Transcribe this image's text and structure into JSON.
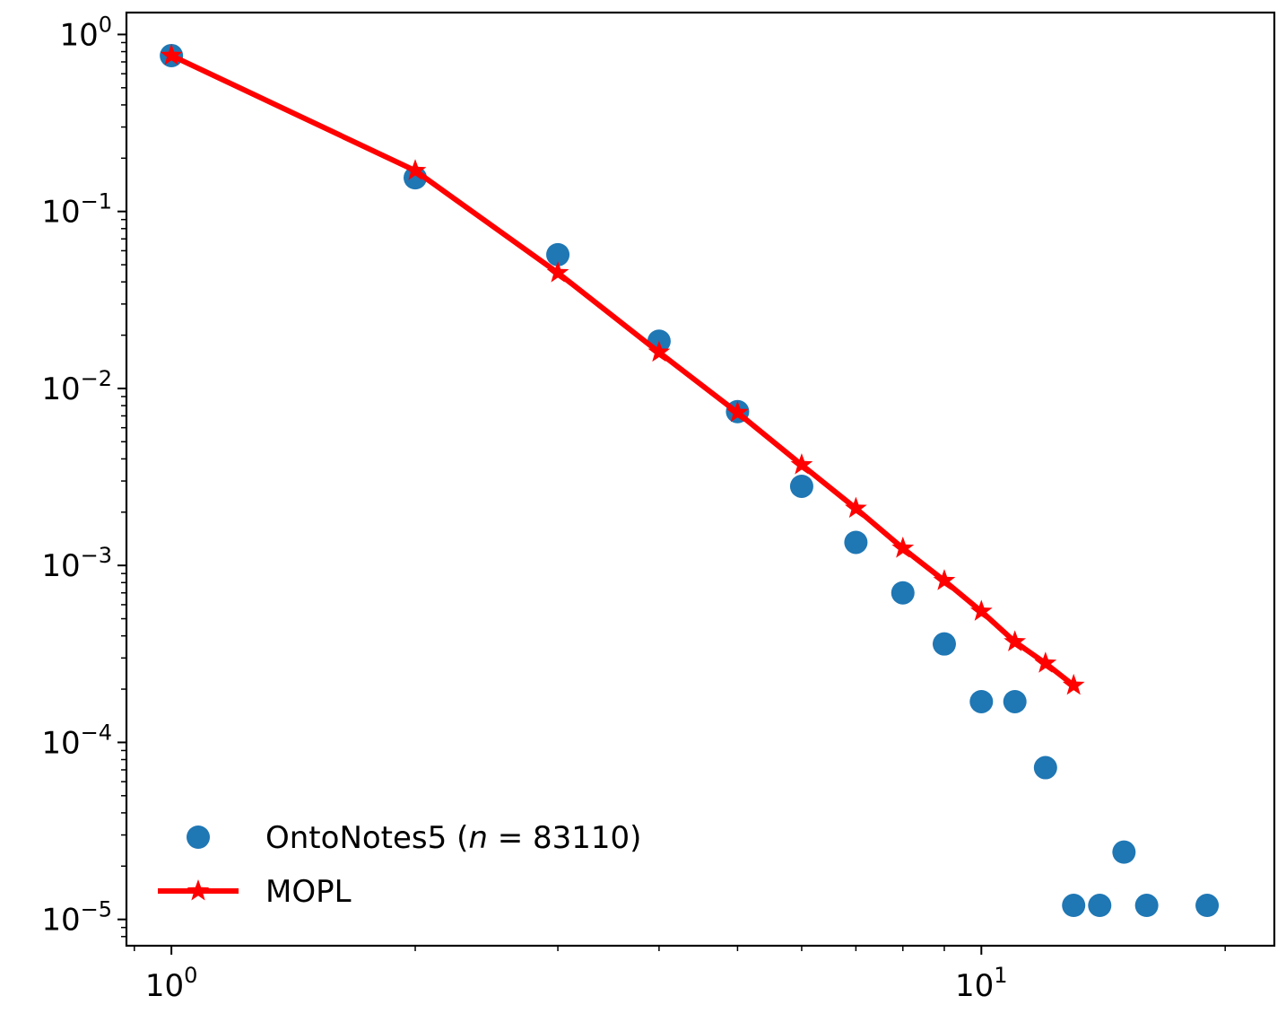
{
  "chart_data": {
    "type": "scatter",
    "title": "",
    "xlabel": "",
    "ylabel": "",
    "xscale": "log",
    "yscale": "log",
    "xlim": [
      0.88,
      23
    ],
    "ylim": [
      7.1e-06,
      1.33
    ],
    "grid": false,
    "legend_position": "lower-left",
    "x_ticks": [
      {
        "value": 1,
        "base": "10",
        "exp": "0"
      },
      {
        "value": 10,
        "base": "10",
        "exp": "1"
      }
    ],
    "y_ticks": [
      {
        "value": 1,
        "base": "10",
        "exp": "0"
      },
      {
        "value": 0.1,
        "base": "10",
        "exp": "−1"
      },
      {
        "value": 0.01,
        "base": "10",
        "exp": "−2"
      },
      {
        "value": 0.001,
        "base": "10",
        "exp": "−3"
      },
      {
        "value": 0.0001,
        "base": "10",
        "exp": "−4"
      },
      {
        "value": 1e-05,
        "base": "10",
        "exp": "−5"
      }
    ],
    "series": [
      {
        "name": "OntoNotes5 (n = 83110)",
        "name_parts": {
          "prefix": "OntoNotes5 (",
          "var": "n",
          "suffix": " = 83110)"
        },
        "kind": "scatter",
        "marker": "circle",
        "color": "#1f77b4",
        "x": [
          1,
          2,
          3,
          4,
          5,
          6,
          7,
          8,
          9,
          10,
          11,
          12,
          13,
          14,
          15,
          16,
          19
        ],
        "y": [
          0.76,
          0.155,
          0.057,
          0.0185,
          0.0074,
          0.0028,
          0.00135,
          0.0007,
          0.00036,
          0.00017,
          0.00017,
          7.2e-05,
          1.2e-05,
          1.2e-05,
          2.4e-05,
          1.2e-05,
          1.2e-05
        ]
      },
      {
        "name": "MOPL",
        "kind": "line",
        "marker": "star",
        "color": "#ff0000",
        "x": [
          1,
          2,
          3,
          4,
          5,
          6,
          7,
          8,
          9,
          10,
          11,
          12,
          13
        ],
        "y": [
          0.76,
          0.17,
          0.045,
          0.016,
          0.0073,
          0.0037,
          0.0021,
          0.00125,
          0.00082,
          0.00055,
          0.00037,
          0.00028,
          0.00021
        ]
      }
    ]
  }
}
